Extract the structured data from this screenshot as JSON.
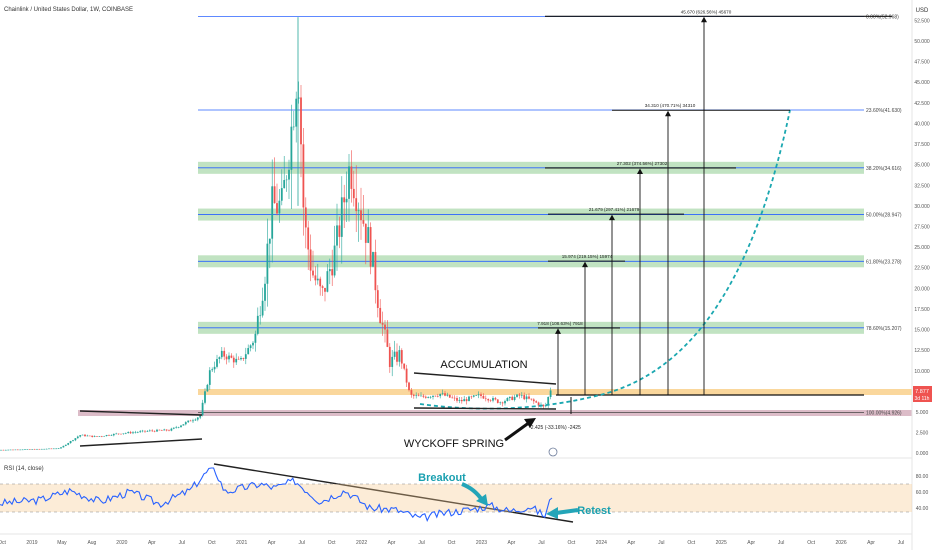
{
  "header": {
    "title": "Chainlink / United States Dollar, 1W, COINBASE",
    "currency": "USD"
  },
  "chart_data": {
    "type": "candlestick",
    "price_axis": {
      "scale": "linear",
      "range": [
        0,
        55
      ],
      "ticks": [
        "52.500",
        "50.000",
        "47.500",
        "45.000",
        "42.500",
        "40.000",
        "37.500",
        "35.000",
        "32.500",
        "30.000",
        "27.500",
        "25.000",
        "22.500",
        "20.000",
        "17.500",
        "15.000",
        "12.500",
        "10.000",
        "7.500",
        "5.000",
        "2.500",
        "0.000"
      ],
      "last_price": "7.877",
      "countdown": "3d 11h"
    },
    "time_axis": {
      "labels": [
        "Oct",
        "2019",
        "May",
        "Aug",
        "2020",
        "Apr",
        "Jul",
        "Oct",
        "2021",
        "Apr",
        "Jul",
        "Oct",
        "2022",
        "Apr",
        "Jul",
        "Oct",
        "2023",
        "Apr",
        "Jul",
        "Oct",
        "2024",
        "Apr",
        "Jul",
        "Oct",
        "2025",
        "Apr",
        "Jul",
        "Oct",
        "2026",
        "Apr",
        "Jul"
      ]
    },
    "fib_levels": [
      {
        "label": "0.00%(52.968)",
        "price": 52.968,
        "band": false
      },
      {
        "label": "23.60%(41.630)",
        "price": 41.63,
        "band": false
      },
      {
        "label": "38.20%(34.616)",
        "price": 34.616,
        "band": true
      },
      {
        "label": "50.00%(28.947)",
        "price": 28.947,
        "band": true
      },
      {
        "label": "61.80%(23.278)",
        "price": 23.278,
        "band": true
      },
      {
        "label": "78.60%(15.207)",
        "price": 15.207,
        "band": true
      },
      {
        "label": "100.00%(4.926)",
        "price": 4.926,
        "band": false
      }
    ],
    "targets": [
      {
        "label": "7.918 (108.63%) 7918",
        "price": 15.2
      },
      {
        "label": "15.974 (219.15%) 15974",
        "price": 23.3
      },
      {
        "label": "21.679 (297.41%) 21679",
        "price": 29.0
      },
      {
        "label": "27.302 (374.56%) 27302",
        "price": 34.6
      },
      {
        "label": "34.310 (470.71%) 34310",
        "price": 41.6
      },
      {
        "label": "45.670 (626.56%) 45670",
        "price": 53.0
      }
    ],
    "drawdown_label": "-2.425 (-33.16%) -2425",
    "annotations": {
      "accumulation": "ACCUMULATION",
      "spring": "WYCKOFF SPRING"
    },
    "rsi": {
      "title": "RSI (14, close)",
      "ticks": [
        "80.00",
        "60.00",
        "40.00"
      ],
      "range": [
        20,
        90
      ],
      "annotations": {
        "breakout": "Breakout",
        "retest": "Retest"
      }
    },
    "colors": {
      "up": "#26a69a",
      "down": "#ef5350",
      "projection": "#1aa7b0",
      "fib_line": "#2962ff",
      "fib_band": "#4caf50",
      "support": "#f5a623",
      "resistance_zone": "#b26a86",
      "rsi_line": "#2962ff",
      "rsi_band": "#f7c98b",
      "annotation_arrow": "#23a5b8"
    }
  }
}
